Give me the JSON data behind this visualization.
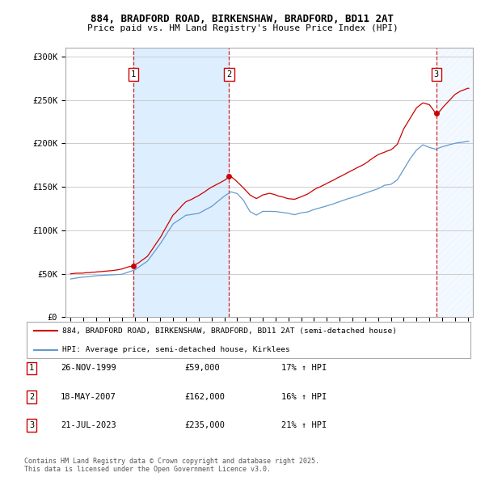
{
  "title_line1": "884, BRADFORD ROAD, BIRKENSHAW, BRADFORD, BD11 2AT",
  "title_line2": "Price paid vs. HM Land Registry's House Price Index (HPI)",
  "sale_dates_decimal": [
    1999.9,
    2007.37,
    2023.55
  ],
  "sale_prices": [
    59000,
    162000,
    235000
  ],
  "sale_labels": [
    "1",
    "2",
    "3"
  ],
  "legend_label_red": "884, BRADFORD ROAD, BIRKENSHAW, BRADFORD, BD11 2AT (semi-detached house)",
  "legend_label_blue": "HPI: Average price, semi-detached house, Kirklees",
  "table_rows": [
    [
      "1",
      "26-NOV-1999",
      "£59,000",
      "17% ↑ HPI"
    ],
    [
      "2",
      "18-MAY-2007",
      "£162,000",
      "16% ↑ HPI"
    ],
    [
      "3",
      "21-JUL-2023",
      "£235,000",
      "21% ↑ HPI"
    ]
  ],
  "footer": "Contains HM Land Registry data © Crown copyright and database right 2025.\nThis data is licensed under the Open Government Licence v3.0.",
  "red_color": "#cc0000",
  "blue_color": "#6699cc",
  "background_color": "#ffffff",
  "shaded_region_color": "#ddeeff",
  "grid_color": "#cccccc",
  "ylim": [
    0,
    310000
  ],
  "yticks": [
    0,
    50000,
    100000,
    150000,
    200000,
    250000,
    300000
  ],
  "ytick_labels": [
    "£0",
    "£50K",
    "£100K",
    "£150K",
    "£200K",
    "£250K",
    "£300K"
  ],
  "xstart_year": 1995,
  "xend_year": 2026,
  "anchors_hpi": {
    "1995.0": 44000,
    "1996.0": 46000,
    "1997.0": 48000,
    "1998.0": 49000,
    "1999.0": 50000,
    "2000.0": 55000,
    "2001.0": 65000,
    "2002.0": 85000,
    "2003.0": 108000,
    "2004.0": 118000,
    "2005.0": 120000,
    "2006.0": 128000,
    "2007.0": 140000,
    "2007.5": 145000,
    "2008.0": 143000,
    "2008.5": 135000,
    "2009.0": 122000,
    "2009.5": 118000,
    "2010.0": 122000,
    "2011.0": 122000,
    "2012.0": 120000,
    "2012.5": 118000,
    "2013.0": 120000,
    "2013.5": 121000,
    "2014.0": 124000,
    "2015.0": 128000,
    "2016.0": 133000,
    "2017.0": 138000,
    "2018.0": 143000,
    "2019.0": 148000,
    "2019.5": 152000,
    "2020.0": 153000,
    "2020.5": 158000,
    "2021.0": 170000,
    "2021.5": 182000,
    "2022.0": 192000,
    "2022.5": 198000,
    "2023.0": 195000,
    "2023.5": 193000,
    "2024.0": 196000,
    "2024.5": 198000,
    "2025.0": 200000,
    "2026.0": 202000
  },
  "anchors_red": {
    "1995.0": 50000,
    "1995.5": 50500,
    "1996.0": 51000,
    "1997.0": 52000,
    "1998.0": 53500,
    "1999.0": 55000,
    "1999.9": 59000,
    "2000.2": 61000,
    "2001.0": 70000,
    "2002.0": 92000,
    "2003.0": 118000,
    "2004.0": 133000,
    "2005.0": 140000,
    "2006.0": 150000,
    "2007.0": 158000,
    "2007.37": 162000,
    "2007.6": 162000,
    "2008.0": 157000,
    "2008.5": 150000,
    "2009.0": 142000,
    "2009.5": 138000,
    "2010.0": 142000,
    "2010.5": 144000,
    "2011.0": 142000,
    "2011.5": 140000,
    "2012.0": 138000,
    "2012.5": 137000,
    "2013.0": 140000,
    "2013.5": 143000,
    "2014.0": 148000,
    "2015.0": 155000,
    "2016.0": 162000,
    "2017.0": 170000,
    "2018.0": 178000,
    "2019.0": 188000,
    "2020.0": 194000,
    "2020.5": 200000,
    "2021.0": 218000,
    "2021.5": 230000,
    "2022.0": 242000,
    "2022.5": 248000,
    "2023.0": 246000,
    "2023.55": 235000,
    "2023.8": 238000,
    "2024.0": 242000,
    "2024.5": 250000,
    "2025.0": 258000,
    "2025.5": 262000,
    "2026.0": 265000
  }
}
